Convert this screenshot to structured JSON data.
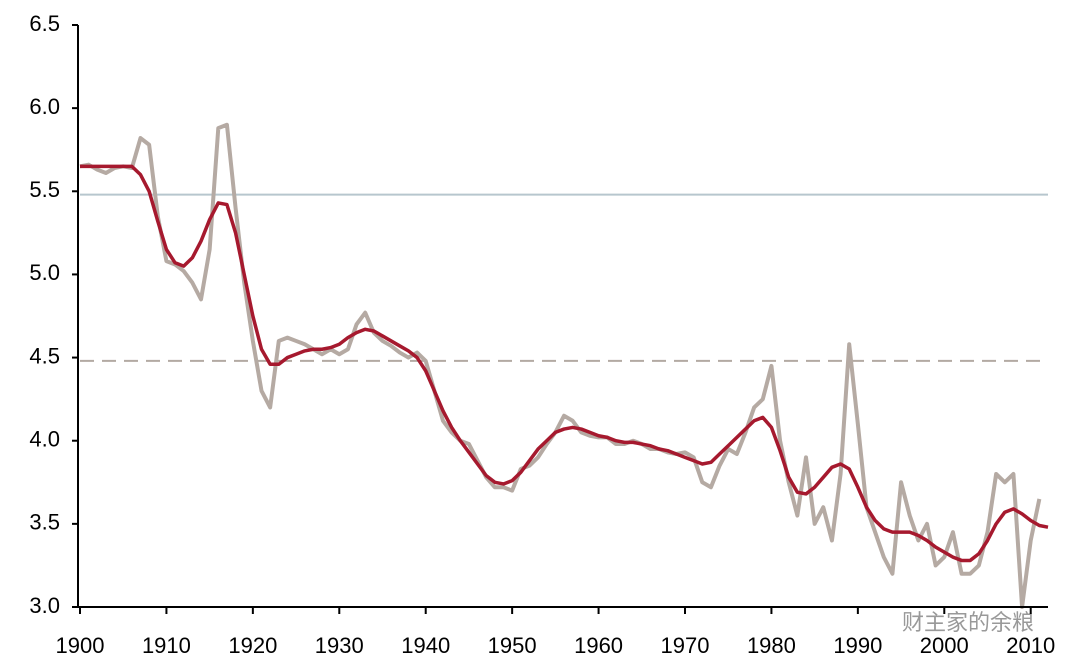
{
  "chart_data": {
    "type": "line",
    "xlim": [
      1900,
      2012
    ],
    "ylim": [
      3.0,
      6.5
    ],
    "xticks": [
      1900,
      1910,
      1920,
      1930,
      1940,
      1950,
      1960,
      1970,
      1980,
      1990,
      2000,
      2010
    ],
    "yticks": [
      {
        "value": 3.0,
        "label": "3.0"
      },
      {
        "value": 3.5,
        "label": "3.5"
      },
      {
        "value": 4.0,
        "label": "4.0"
      },
      {
        "value": 4.5,
        "label": "4.5"
      },
      {
        "value": 5.0,
        "label": "5.0"
      },
      {
        "value": 5.5,
        "label": "5.5"
      },
      {
        "value": 6.0,
        "label": "6.0"
      },
      {
        "value": 6.5,
        "label": "6.5"
      }
    ],
    "reference_lines": [
      {
        "value": 5.48,
        "color": "#b7c6ce",
        "dashed": false
      },
      {
        "value": 4.48,
        "color": "#b3aaa3",
        "dashed": true
      }
    ],
    "series": [
      {
        "color": "#b5aaa3",
        "width": 4,
        "x": [
          1900,
          1901,
          1902,
          1903,
          1904,
          1905,
          1906,
          1907,
          1908,
          1909,
          1910,
          1911,
          1912,
          1913,
          1914,
          1915,
          1916,
          1917,
          1918,
          1919,
          1920,
          1921,
          1922,
          1923,
          1924,
          1925,
          1926,
          1927,
          1928,
          1929,
          1930,
          1931,
          1932,
          1933,
          1934,
          1935,
          1936,
          1937,
          1938,
          1939,
          1940,
          1941,
          1942,
          1943,
          1944,
          1945,
          1946,
          1947,
          1948,
          1949,
          1950,
          1951,
          1952,
          1953,
          1954,
          1955,
          1956,
          1957,
          1958,
          1959,
          1960,
          1961,
          1962,
          1963,
          1964,
          1965,
          1966,
          1967,
          1968,
          1969,
          1970,
          1971,
          1972,
          1973,
          1974,
          1975,
          1976,
          1977,
          1978,
          1979,
          1980,
          1981,
          1982,
          1983,
          1984,
          1985,
          1986,
          1987,
          1988,
          1989,
          1990,
          1991,
          1992,
          1993,
          1994,
          1995,
          1996,
          1997,
          1998,
          1999,
          2000,
          2001,
          2002,
          2003,
          2004,
          2005,
          2006,
          2007,
          2008,
          2009,
          2010,
          2011
        ],
        "values": [
          5.65,
          5.66,
          5.63,
          5.61,
          5.64,
          5.65,
          5.64,
          5.82,
          5.78,
          5.35,
          5.08,
          5.06,
          5.02,
          4.95,
          4.85,
          5.15,
          5.88,
          5.9,
          5.4,
          4.95,
          4.6,
          4.3,
          4.2,
          4.6,
          4.62,
          4.6,
          4.58,
          4.55,
          4.52,
          4.55,
          4.52,
          4.55,
          4.7,
          4.77,
          4.65,
          4.6,
          4.57,
          4.53,
          4.5,
          4.53,
          4.48,
          4.3,
          4.12,
          4.05,
          4.0,
          3.98,
          3.88,
          3.78,
          3.72,
          3.72,
          3.7,
          3.83,
          3.85,
          3.9,
          3.98,
          4.05,
          4.15,
          4.12,
          4.05,
          4.03,
          4.02,
          4.02,
          3.98,
          3.98,
          4.0,
          3.98,
          3.95,
          3.95,
          3.93,
          3.92,
          3.93,
          3.9,
          3.75,
          3.72,
          3.85,
          3.95,
          3.92,
          4.05,
          4.2,
          4.25,
          4.45,
          4.0,
          3.75,
          3.55,
          3.9,
          3.5,
          3.6,
          3.4,
          3.8,
          4.58,
          4.1,
          3.6,
          3.45,
          3.3,
          3.2,
          3.75,
          3.55,
          3.4,
          3.5,
          3.25,
          3.3,
          3.45,
          3.2,
          3.2,
          3.25,
          3.45,
          3.8,
          3.75,
          3.8,
          3.0,
          3.4,
          3.65
        ]
      },
      {
        "color": "#a6192e",
        "width": 3.5,
        "x": [
          1900,
          1902,
          1904,
          1906,
          1907,
          1908,
          1909,
          1910,
          1911,
          1912,
          1913,
          1914,
          1915,
          1916,
          1917,
          1918,
          1919,
          1920,
          1921,
          1922,
          1923,
          1924,
          1925,
          1926,
          1927,
          1928,
          1929,
          1930,
          1931,
          1932,
          1933,
          1934,
          1935,
          1936,
          1937,
          1938,
          1939,
          1940,
          1941,
          1942,
          1943,
          1944,
          1945,
          1946,
          1947,
          1948,
          1949,
          1950,
          1951,
          1952,
          1953,
          1954,
          1955,
          1956,
          1957,
          1958,
          1959,
          1960,
          1961,
          1962,
          1963,
          1964,
          1965,
          1966,
          1967,
          1968,
          1969,
          1970,
          1971,
          1972,
          1973,
          1974,
          1975,
          1976,
          1977,
          1978,
          1979,
          1980,
          1981,
          1982,
          1983,
          1984,
          1985,
          1986,
          1987,
          1988,
          1989,
          1990,
          1991,
          1992,
          1993,
          1994,
          1995,
          1996,
          1997,
          1998,
          1999,
          2000,
          2001,
          2002,
          2003,
          2004,
          2005,
          2006,
          2007,
          2008,
          2009,
          2010,
          2011,
          2012
        ],
        "values": [
          5.65,
          5.65,
          5.65,
          5.65,
          5.6,
          5.5,
          5.32,
          5.15,
          5.07,
          5.05,
          5.1,
          5.2,
          5.33,
          5.43,
          5.42,
          5.25,
          5.0,
          4.75,
          4.55,
          4.46,
          4.46,
          4.5,
          4.52,
          4.54,
          4.55,
          4.55,
          4.56,
          4.58,
          4.62,
          4.65,
          4.67,
          4.66,
          4.63,
          4.6,
          4.57,
          4.54,
          4.5,
          4.42,
          4.3,
          4.18,
          4.08,
          4.0,
          3.93,
          3.86,
          3.79,
          3.75,
          3.74,
          3.76,
          3.81,
          3.88,
          3.95,
          4.0,
          4.05,
          4.07,
          4.08,
          4.07,
          4.05,
          4.03,
          4.02,
          4.0,
          3.99,
          3.99,
          3.98,
          3.97,
          3.95,
          3.94,
          3.92,
          3.9,
          3.88,
          3.86,
          3.87,
          3.92,
          3.97,
          4.02,
          4.07,
          4.12,
          4.14,
          4.08,
          3.94,
          3.78,
          3.69,
          3.68,
          3.72,
          3.78,
          3.84,
          3.86,
          3.83,
          3.72,
          3.6,
          3.52,
          3.47,
          3.45,
          3.45,
          3.45,
          3.43,
          3.4,
          3.36,
          3.33,
          3.3,
          3.28,
          3.28,
          3.32,
          3.4,
          3.5,
          3.57,
          3.59,
          3.56,
          3.52,
          3.49,
          3.48
        ]
      }
    ],
    "watermark": "财主家的余粮"
  }
}
